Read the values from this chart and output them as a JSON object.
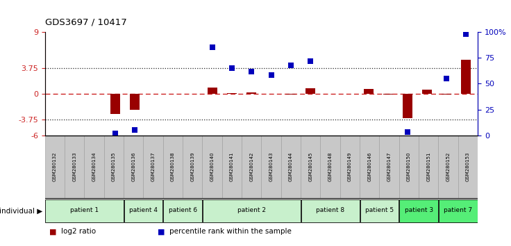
{
  "title": "GDS3697 / 10417",
  "samples": [
    "GSM280132",
    "GSM280133",
    "GSM280134",
    "GSM280135",
    "GSM280136",
    "GSM280137",
    "GSM280138",
    "GSM280139",
    "GSM280140",
    "GSM280141",
    "GSM280142",
    "GSM280143",
    "GSM280144",
    "GSM280145",
    "GSM280148",
    "GSM280149",
    "GSM280146",
    "GSM280147",
    "GSM280150",
    "GSM280151",
    "GSM280152",
    "GSM280153"
  ],
  "log2_ratio": [
    0.0,
    0.0,
    0.0,
    -2.9,
    -2.3,
    0.0,
    0.0,
    0.0,
    0.9,
    0.15,
    0.2,
    0.0,
    -0.05,
    0.8,
    0.0,
    0.0,
    0.7,
    -0.1,
    -3.5,
    0.6,
    -0.05,
    5.0
  ],
  "percentile": [
    null,
    null,
    null,
    2,
    5,
    null,
    null,
    null,
    85,
    65,
    62,
    58,
    68,
    72,
    null,
    null,
    null,
    null,
    3,
    null,
    55,
    98
  ],
  "ylim_left": [
    -6,
    9
  ],
  "ylim_right": [
    0,
    100
  ],
  "hline_values": [
    3.75,
    -3.75
  ],
  "right_ticks": [
    0,
    25,
    50,
    75,
    100
  ],
  "right_tick_labels": [
    "0",
    "25",
    "50",
    "75",
    "100%"
  ],
  "left_ticks": [
    -6,
    -3.75,
    0,
    3.75,
    9
  ],
  "patients": [
    {
      "label": "patient 1",
      "start": 0,
      "end": 3,
      "color": "#c8f0cc"
    },
    {
      "label": "patient 4",
      "start": 4,
      "end": 5,
      "color": "#c8f0cc"
    },
    {
      "label": "patient 6",
      "start": 6,
      "end": 7,
      "color": "#c8f0cc"
    },
    {
      "label": "patient 2",
      "start": 8,
      "end": 12,
      "color": "#c8f0cc"
    },
    {
      "label": "patient 8",
      "start": 13,
      "end": 15,
      "color": "#c8f0cc"
    },
    {
      "label": "patient 5",
      "start": 16,
      "end": 17,
      "color": "#c8f0cc"
    },
    {
      "label": "patient 3",
      "start": 18,
      "end": 19,
      "color": "#55ee77"
    },
    {
      "label": "patient 7",
      "start": 20,
      "end": 21,
      "color": "#55ee77"
    }
  ],
  "bar_color": "#990000",
  "dot_color": "#0000bb",
  "zero_line_color": "#cc2222",
  "dotted_color": "#222222",
  "sample_bg": "#c8c8c8",
  "left_tick_color": "#cc2222",
  "right_tick_color": "#0000bb",
  "legend": [
    {
      "color": "#990000",
      "label": "log2 ratio"
    },
    {
      "color": "#0000bb",
      "label": "percentile rank within the sample"
    }
  ]
}
